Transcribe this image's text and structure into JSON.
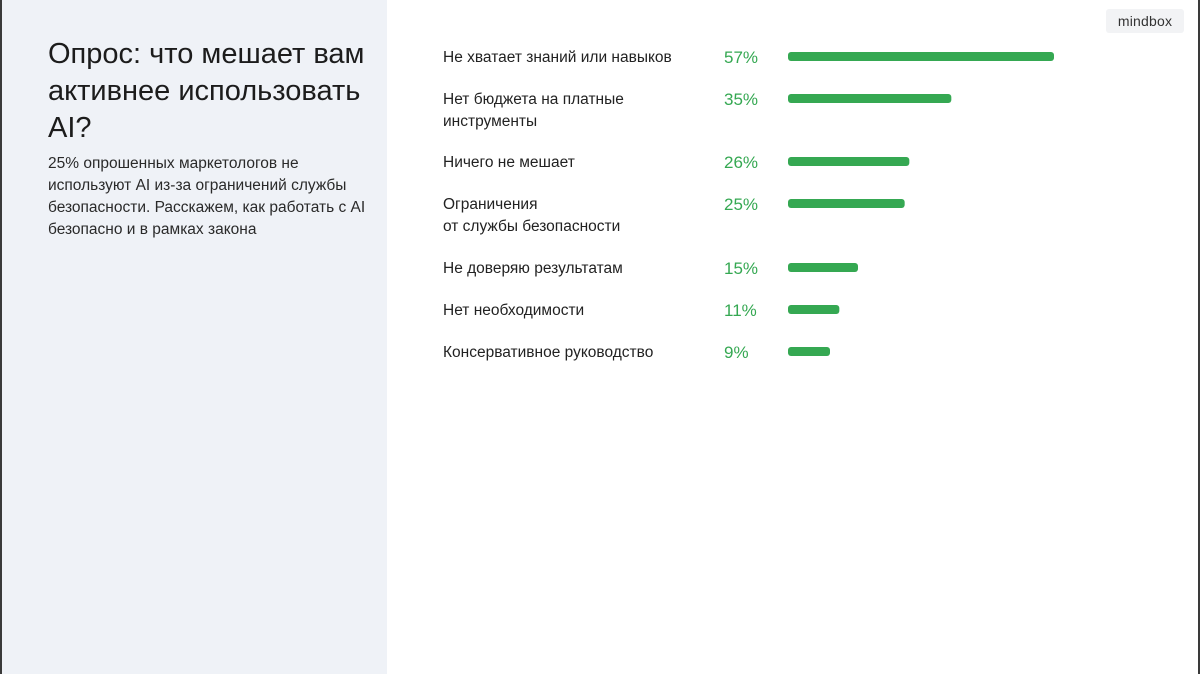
{
  "slide": {
    "title": "Опрос: что мешает вам активнее использовать AI?",
    "subtitle": "25% опрошенных маркетологов не используют AI из-за ограничений службы безопасности. Расскажем, как работать с AI безопасно и в рамках закона",
    "logo": "mindbox"
  },
  "colors": {
    "bar": "#35a852",
    "value_text": "#35a852",
    "left_panel": "#eff2f7"
  },
  "chart_data": {
    "type": "bar",
    "orientation": "horizontal",
    "categories": [
      [
        "Не хватает знаний или навыков"
      ],
      [
        "Нет бюджета на платные",
        "инструменты"
      ],
      [
        "Ничего не мешает"
      ],
      [
        "Ограничения",
        "от службы безопасности"
      ],
      [
        "Не доверяю результатам"
      ],
      [
        "Нет необходимости"
      ],
      [
        "Консервативное руководство"
      ]
    ],
    "values": [
      57,
      35,
      26,
      25,
      15,
      11,
      9
    ],
    "value_labels": [
      "57%",
      "35%",
      "26%",
      "25%",
      "15%",
      "11%",
      "9%"
    ],
    "unit": "%",
    "xlim": [
      0,
      57
    ],
    "grid": false,
    "legend": "none"
  }
}
